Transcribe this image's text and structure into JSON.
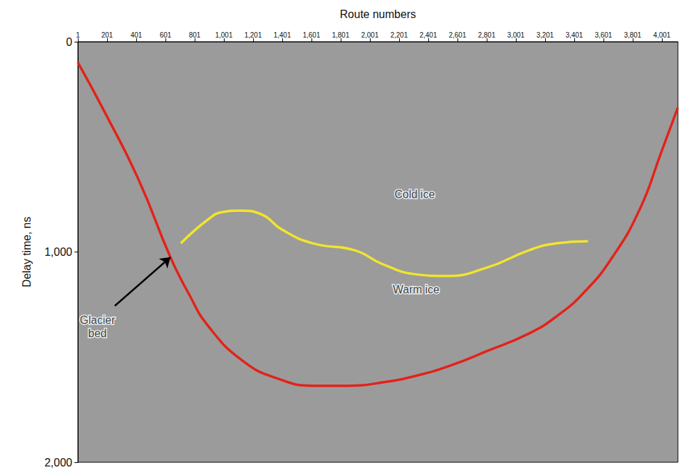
{
  "chart_data": {
    "type": "line",
    "x_label": "Route numbers",
    "y_label": "Delay time, ns",
    "xlim": [
      1,
      4111
    ],
    "xticks": [
      1,
      201,
      401,
      601,
      801,
      1001,
      1201,
      1401,
      1601,
      1801,
      2001,
      2201,
      2401,
      2601,
      2801,
      3001,
      3201,
      3401,
      3601,
      3801,
      4001
    ],
    "ylim": [
      0,
      2000
    ],
    "yticks": [
      0,
      1000,
      2000
    ],
    "grid": false,
    "series": [
      {
        "color": "#e32219",
        "x": [
          1,
          182,
          420,
          635,
          754,
          897,
          1135,
          1374,
          1612,
          1850,
          2089,
          2327,
          2565,
          2804,
          3090,
          3280,
          3471,
          3662,
          3852,
          3995,
          4110
        ],
        "values": [
          99,
          331,
          661,
          1025,
          1190,
          1355,
          1520,
          1603,
          1636,
          1636,
          1620,
          1587,
          1537,
          1471,
          1388,
          1306,
          1190,
          1025,
          793,
          529,
          314
        ]
      },
      {
        "color": "#f2e52b",
        "x": [
          706,
          897,
          992,
          1112,
          1255,
          1398,
          1612,
          1898,
          2089,
          2327,
          2518,
          2804,
          3090,
          3280,
          3495
        ],
        "values": [
          959,
          843,
          810,
          803,
          820,
          893,
          959,
          992,
          1058,
          1107,
          1114,
          1074,
          992,
          959,
          949
        ]
      }
    ],
    "annotations": [
      {
        "text": "Cold ice",
        "x": 2308,
        "y": 727
      },
      {
        "text": "Warm ice",
        "x": 2318,
        "y": 1177
      },
      {
        "text": "Glacier bed",
        "x": 135,
        "y": 1355,
        "arrow": [
          [
            254,
            1256
          ],
          [
            635,
            1025
          ]
        ]
      }
    ]
  }
}
